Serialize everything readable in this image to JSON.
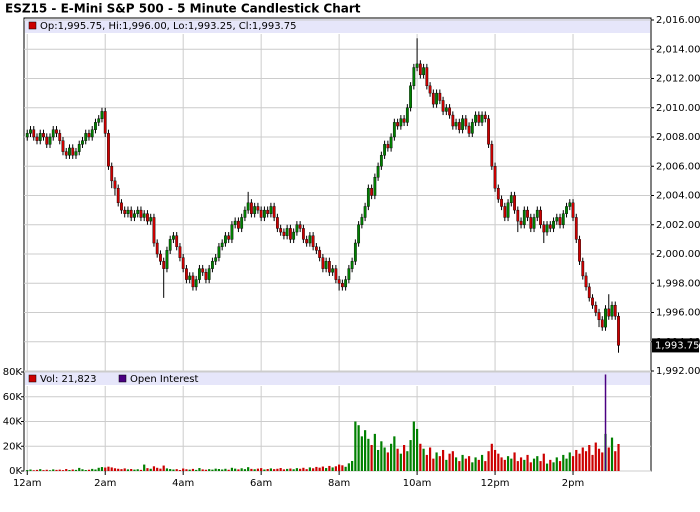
{
  "chart_data": [
    {
      "type": "candlestick",
      "title": "ESZ15 - E-Mini S&P 500 - 5 Minute Candlestick Chart",
      "legend": "Op:1,995.75, Hi:1,996.00, Lo:1,993.25, Cl:1,993.75",
      "last_label": "1,993.75",
      "up_color": "#008000",
      "down_color": "#cc0000",
      "grid": true,
      "xlim": [
        -1,
        192
      ],
      "xticks": [
        {
          "value": 0,
          "label": "12am"
        },
        {
          "value": 24,
          "label": "2am"
        },
        {
          "value": 48,
          "label": "4am"
        },
        {
          "value": 72,
          "label": "6am"
        },
        {
          "value": 96,
          "label": "8am"
        },
        {
          "value": 120,
          "label": "10am"
        },
        {
          "value": 144,
          "label": "12pm"
        },
        {
          "value": 168,
          "label": "2pm"
        }
      ],
      "ylim": [
        1992,
        2016
      ],
      "yticks": [
        {
          "value": 1992,
          "label": "1,992.00"
        },
        {
          "value": 1994,
          "label": "1,994.00"
        },
        {
          "value": 1996,
          "label": "1,996.00"
        },
        {
          "value": 1998,
          "label": "1,998.00"
        },
        {
          "value": 2000,
          "label": "2,000.00"
        },
        {
          "value": 2002,
          "label": "2,002.00"
        },
        {
          "value": 2004,
          "label": "2,004.00"
        },
        {
          "value": 2006,
          "label": "2,006.00"
        },
        {
          "value": 2008,
          "label": "2,008.00"
        },
        {
          "value": 2010,
          "label": "2,010.00"
        },
        {
          "value": 2012,
          "label": "2,012.00"
        },
        {
          "value": 2014,
          "label": "2,014.00"
        },
        {
          "value": 2016,
          "label": "2,016.00"
        }
      ],
      "open": [
        2008.0,
        2008.25,
        2008.5,
        2008.0,
        2007.75,
        2008.25,
        2008.0,
        2007.5,
        2008.0,
        2008.5,
        2008.25,
        2007.75,
        2007.0,
        2006.75,
        2007.25,
        2006.75,
        2007.0,
        2007.5,
        2007.75,
        2008.25,
        2008.0,
        2008.5,
        2009.0,
        2009.25,
        2009.75,
        2008.25,
        2006.0,
        2005.0,
        2004.5,
        2003.5,
        2003.0,
        2002.75,
        2003.0,
        2002.5,
        2002.75,
        2003.0,
        2002.5,
        2002.75,
        2002.25,
        2002.5,
        2000.75,
        2000.0,
        1999.5,
        1999.0,
        2000.25,
        2001.0,
        2001.25,
        2000.5,
        1999.75,
        1999.0,
        1998.25,
        1998.5,
        1997.75,
        1998.25,
        1999.0,
        1998.75,
        1998.25,
        1999.0,
        1999.5,
        1999.75,
        2000.5,
        2000.75,
        2001.25,
        2001.0,
        2002.0,
        2002.25,
        2001.75,
        2002.5,
        2003.0,
        2003.5,
        2002.75,
        2003.25,
        2003.0,
        2002.5,
        2003.0,
        2002.75,
        2003.25,
        2002.5,
        2001.75,
        2001.5,
        2001.25,
        2001.75,
        2001.0,
        2001.5,
        2002.0,
        2001.75,
        2001.0,
        2000.75,
        2001.25,
        2000.5,
        2000.25,
        1999.75,
        1999.0,
        1999.5,
        1998.75,
        1999.0,
        1998.25,
        1998.0,
        1997.75,
        1998.25,
        1999.0,
        1999.5,
        2000.75,
        2002.0,
        2002.5,
        2003.25,
        2004.5,
        2004.0,
        2005.25,
        2006.0,
        2006.75,
        2007.5,
        2007.25,
        2008.0,
        2009.0,
        2008.75,
        2009.25,
        2009.0,
        2010.0,
        2011.5,
        2012.75,
        2013.0,
        2012.25,
        2012.75,
        2011.5,
        2011.0,
        2010.25,
        2011.0,
        2010.5,
        2009.75,
        2010.0,
        2009.5,
        2008.75,
        2009.0,
        2008.5,
        2009.25,
        2008.75,
        2008.25,
        2009.0,
        2009.5,
        2009.0,
        2009.5,
        2009.25,
        2007.5,
        2006.0,
        2004.5,
        2003.75,
        2003.25,
        2002.5,
        2003.5,
        2004.0,
        2003.0,
        2002.25,
        2002.0,
        2003.0,
        2002.5,
        2001.75,
        2002.5,
        2003.0,
        2002.0,
        2001.5,
        2002.0,
        2001.75,
        2002.25,
        2002.5,
        2002.0,
        2002.75,
        2003.25,
        2003.5,
        2002.5,
        2001.0,
        1999.5,
        1998.5,
        1997.75,
        1997.0,
        1996.5,
        1996.0,
        1995.5,
        1995.0,
        1996.25,
        1995.75,
        1996.5,
        1995.75
      ],
      "high": [
        2008.5,
        2008.75,
        2008.75,
        2008.25,
        2008.5,
        2008.5,
        2008.25,
        2008.25,
        2008.75,
        2008.75,
        2008.5,
        2008.0,
        2007.25,
        2007.5,
        2007.5,
        2007.25,
        2007.75,
        2008.0,
        2008.5,
        2008.5,
        2008.75,
        2009.25,
        2009.5,
        2010.0,
        2010.0,
        2008.5,
        2006.25,
        2005.25,
        2004.75,
        2003.75,
        2003.25,
        2003.25,
        2003.25,
        2003.0,
        2003.25,
        2003.25,
        2003.0,
        2003.0,
        2002.75,
        2002.75,
        2001.0,
        2000.25,
        1999.75,
        2000.5,
        2001.25,
        2001.5,
        2001.5,
        2000.75,
        2000.0,
        1999.25,
        1998.75,
        1998.75,
        1998.5,
        1999.25,
        1999.25,
        1999.0,
        1999.25,
        1999.75,
        2000.0,
        2000.75,
        2001.0,
        2001.5,
        2001.5,
        2002.25,
        2002.5,
        2002.5,
        2002.75,
        2003.25,
        2004.25,
        2003.75,
        2003.5,
        2003.5,
        2003.25,
        2003.25,
        2003.25,
        2003.5,
        2003.5,
        2002.75,
        2002.0,
        2001.75,
        2002.0,
        2002.0,
        2001.75,
        2002.25,
        2002.25,
        2002.0,
        2001.25,
        2001.5,
        2001.5,
        2000.75,
        2000.5,
        2000.0,
        1999.75,
        1999.75,
        1999.25,
        1999.25,
        1998.5,
        1998.25,
        1998.5,
        1999.25,
        1999.75,
        2001.0,
        2002.25,
        2002.75,
        2003.5,
        2004.75,
        2004.75,
        2005.5,
        2006.25,
        2007.0,
        2007.75,
        2007.75,
        2008.25,
        2009.25,
        2009.25,
        2009.5,
        2009.5,
        2010.25,
        2011.75,
        2013.0,
        2014.75,
        2013.25,
        2013.0,
        2013.0,
        2011.75,
        2011.25,
        2011.25,
        2011.25,
        2010.75,
        2010.25,
        2010.25,
        2009.75,
        2009.25,
        2009.25,
        2009.5,
        2009.5,
        2009.0,
        2009.25,
        2009.75,
        2009.75,
        2009.75,
        2009.75,
        2009.5,
        2007.75,
        2006.25,
        2004.75,
        2004.0,
        2003.5,
        2003.75,
        2004.25,
        2004.25,
        2003.25,
        2002.5,
        2003.25,
        2003.25,
        2002.75,
        2002.75,
        2003.25,
        2003.25,
        2002.25,
        2002.25,
        2002.25,
        2002.5,
        2002.75,
        2002.75,
        2003.0,
        2003.5,
        2003.75,
        2003.75,
        2002.75,
        2001.25,
        1999.75,
        1998.75,
        1998.0,
        1997.25,
        1996.75,
        1996.25,
        1995.75,
        1996.5,
        1997.25,
        1996.75,
        1996.75,
        1996.0
      ],
      "low": [
        2007.75,
        2008.0,
        2007.75,
        2007.5,
        2007.5,
        2007.75,
        2007.25,
        2007.25,
        2007.75,
        2008.0,
        2007.5,
        2006.75,
        2006.5,
        2006.5,
        2006.5,
        2006.5,
        2006.75,
        2007.25,
        2007.5,
        2007.75,
        2007.75,
        2008.25,
        2008.75,
        2009.0,
        2008.0,
        2005.75,
        2004.5,
        2004.0,
        2003.25,
        2002.75,
        2002.5,
        2002.5,
        2002.25,
        2002.25,
        2002.5,
        2002.25,
        2002.25,
        2002.0,
        2002.0,
        2000.5,
        1999.75,
        1999.25,
        1997.0,
        1998.75,
        2000.0,
        2000.75,
        2000.25,
        1999.5,
        1998.75,
        1998.0,
        1998.0,
        1997.5,
        1997.5,
        1998.0,
        1998.5,
        1998.0,
        1998.0,
        1998.75,
        1999.25,
        1999.5,
        2000.25,
        2000.5,
        2000.75,
        2000.75,
        2001.75,
        2001.5,
        2001.5,
        2002.25,
        2002.75,
        2002.5,
        2002.5,
        2002.75,
        2002.25,
        2002.25,
        2002.5,
        2002.5,
        2002.25,
        2001.5,
        2001.25,
        2001.0,
        2001.0,
        2000.75,
        2000.75,
        2001.25,
        2001.5,
        2000.75,
        2000.5,
        2000.5,
        2000.25,
        2000.0,
        1999.5,
        1998.75,
        1998.75,
        1998.5,
        1998.5,
        1998.0,
        1997.5,
        1997.5,
        1997.5,
        1998.0,
        1998.75,
        1999.25,
        2000.5,
        2001.75,
        2002.25,
        2003.0,
        2003.75,
        2003.75,
        2005.0,
        2005.75,
        2006.5,
        2007.0,
        2007.0,
        2007.75,
        2008.5,
        2008.5,
        2008.75,
        2008.75,
        2009.75,
        2011.25,
        2012.5,
        2012.0,
        2012.0,
        2011.25,
        2010.75,
        2010.0,
        2010.0,
        2010.25,
        2009.5,
        2009.5,
        2009.25,
        2008.5,
        2008.5,
        2008.25,
        2008.25,
        2008.5,
        2008.0,
        2008.0,
        2008.75,
        2008.75,
        2008.75,
        2009.0,
        2007.25,
        2005.75,
        2004.25,
        2003.5,
        2003.0,
        2002.25,
        2002.25,
        2003.25,
        2002.75,
        2001.5,
        2001.75,
        2001.75,
        2002.25,
        2001.5,
        2001.5,
        2002.25,
        2001.75,
        2000.75,
        2001.25,
        2001.5,
        2001.5,
        2002.0,
        2001.75,
        2001.75,
        2002.5,
        2003.0,
        2002.25,
        2000.75,
        1999.25,
        1998.25,
        1997.5,
        1996.75,
        1996.25,
        1995.75,
        1995.0,
        1994.75,
        1994.75,
        1995.5,
        1995.5,
        1995.5,
        1993.25
      ],
      "close": [
        2008.25,
        2008.5,
        2008.0,
        2007.75,
        2008.25,
        2008.0,
        2007.5,
        2008.0,
        2008.5,
        2008.25,
        2007.75,
        2007.0,
        2006.75,
        2007.25,
        2006.75,
        2007.0,
        2007.5,
        2007.75,
        2008.25,
        2008.0,
        2008.5,
        2009.0,
        2009.25,
        2009.75,
        2008.25,
        2006.0,
        2005.0,
        2004.5,
        2003.5,
        2003.0,
        2002.75,
        2003.0,
        2002.5,
        2002.75,
        2003.0,
        2002.5,
        2002.75,
        2002.25,
        2002.5,
        2000.75,
        2000.0,
        1999.5,
        1999.0,
        2000.25,
        2001.0,
        2001.25,
        2000.5,
        1999.75,
        1999.0,
        1998.25,
        1998.5,
        1997.75,
        1998.25,
        1999.0,
        1998.75,
        1998.25,
        1999.0,
        1999.5,
        1999.75,
        2000.5,
        2000.75,
        2001.25,
        2001.0,
        2002.0,
        2002.25,
        2001.75,
        2002.5,
        2003.0,
        2003.5,
        2002.75,
        2003.25,
        2003.0,
        2002.5,
        2003.0,
        2002.75,
        2003.25,
        2002.5,
        2001.75,
        2001.5,
        2001.25,
        2001.75,
        2001.0,
        2001.5,
        2002.0,
        2001.75,
        2001.0,
        2000.75,
        2001.25,
        2000.5,
        2000.25,
        1999.75,
        1999.0,
        1999.5,
        1998.75,
        1999.0,
        1998.25,
        1998.0,
        1997.75,
        1998.25,
        1999.0,
        1999.5,
        2000.75,
        2002.0,
        2002.5,
        2003.25,
        2004.5,
        2004.0,
        2005.25,
        2006.0,
        2006.75,
        2007.5,
        2007.25,
        2008.0,
        2009.0,
        2008.75,
        2009.25,
        2009.0,
        2010.0,
        2011.5,
        2012.75,
        2013.0,
        2012.25,
        2012.75,
        2011.5,
        2011.0,
        2010.25,
        2011.0,
        2010.5,
        2009.75,
        2010.0,
        2009.5,
        2008.75,
        2009.0,
        2008.5,
        2009.25,
        2008.75,
        2008.25,
        2009.0,
        2009.5,
        2009.0,
        2009.5,
        2009.25,
        2007.5,
        2006.0,
        2004.5,
        2003.75,
        2003.25,
        2002.5,
        2003.5,
        2004.0,
        2003.0,
        2002.25,
        2002.0,
        2003.0,
        2002.5,
        2001.75,
        2002.5,
        2003.0,
        2002.0,
        2001.5,
        2002.0,
        2001.75,
        2002.25,
        2002.5,
        2002.0,
        2002.75,
        2003.25,
        2003.5,
        2002.5,
        2001.0,
        1999.5,
        1998.5,
        1997.75,
        1997.0,
        1996.5,
        1996.0,
        1995.5,
        1995.0,
        1996.25,
        1995.75,
        1996.5,
        1995.75,
        1993.75
      ]
    },
    {
      "type": "bar",
      "xlim": [
        -1,
        192
      ],
      "xticks": [
        {
          "value": 0,
          "label": "12am"
        },
        {
          "value": 24,
          "label": "2am"
        },
        {
          "value": 48,
          "label": "4am"
        },
        {
          "value": 72,
          "label": "6am"
        },
        {
          "value": 96,
          "label": "8am"
        },
        {
          "value": 120,
          "label": "10am"
        },
        {
          "value": 144,
          "label": "12pm"
        },
        {
          "value": 168,
          "label": "2pm"
        }
      ],
      "ylim": [
        0,
        80000
      ],
      "yticks": [
        {
          "value": 0,
          "label": "0K"
        },
        {
          "value": 20000,
          "label": "20K"
        },
        {
          "value": 40000,
          "label": "40K"
        },
        {
          "value": 60000,
          "label": "60K"
        },
        {
          "value": 80000,
          "label": "80K"
        }
      ],
      "series": [
        {
          "name": "Vol: 21,823",
          "color": "#cc0000",
          "values": [
            800,
            1200,
            600,
            900,
            1500,
            700,
            1000,
            600,
            1300,
            900,
            1100,
            700,
            1600,
            800,
            1200,
            900,
            2500,
            1400,
            800,
            1000,
            1700,
            1200,
            2600,
            3200,
            2800,
            3500,
            2900,
            2200,
            1800,
            1500,
            2100,
            1300,
            1600,
            1100,
            1400,
            900,
            5200,
            2300,
            1800,
            3800,
            2600,
            1900,
            4400,
            2100,
            1600,
            1200,
            1500,
            800,
            2000,
            1400,
            1100,
            1700,
            900,
            2400,
            1300,
            1000,
            1500,
            1100,
            1900,
            1600,
            1200,
            1800,
            1000,
            2600,
            1900,
            1300,
            2200,
            1500,
            3100,
            1700,
            1400,
            1900,
            2300,
            1200,
            1600,
            2100,
            1500,
            1800,
            2400,
            1300,
            1700,
            2000,
            1400,
            2300,
            1800,
            2600,
            1500,
            2900,
            2200,
            3300,
            2700,
            3600,
            2400,
            4100,
            2900,
            3800,
            5200,
            4600,
            3400,
            6200,
            8100,
            40000,
            37000,
            28000,
            33000,
            26000,
            21000,
            30000,
            17000,
            24000,
            19000,
            15000,
            22000,
            28000,
            18000,
            14000,
            21000,
            16000,
            25000,
            40000,
            34000,
            22000,
            18000,
            13000,
            19000,
            10000,
            15000,
            12000,
            17000,
            9000,
            14000,
            16000,
            11000,
            8000,
            13000,
            10000,
            12000,
            7000,
            11000,
            9000,
            13000,
            8000,
            16000,
            22000,
            17000,
            14000,
            11000,
            9000,
            12000,
            10000,
            15000,
            8000,
            11000,
            9000,
            13000,
            7000,
            10000,
            12000,
            8000,
            14000,
            6000,
            9000,
            7000,
            11000,
            8000,
            13000,
            10000,
            15000,
            12000,
            17000,
            14000,
            19000,
            16000,
            21000,
            13000,
            23000,
            18000,
            15000,
            30000,
            19000,
            27000,
            16000,
            21823
          ]
        },
        {
          "name": "Open Interest",
          "color": "#4b0082",
          "x": [
            178
          ],
          "values": [
            78000
          ]
        }
      ]
    }
  ]
}
